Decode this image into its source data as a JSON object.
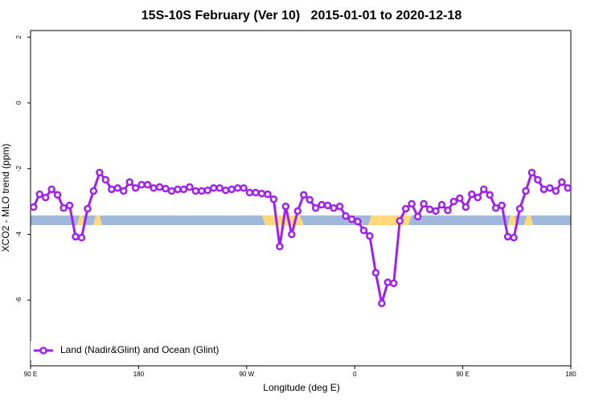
{
  "chart_data": {
    "type": "line",
    "title": "15S-10S February (Ver 10)   2015-01-01 to 2020-12-18",
    "xlabel": "Longitude (deg E)",
    "ylabel": "XCO2 - MLO trend (ppm)",
    "xlim": [
      90,
      540
    ],
    "xticks": [
      {
        "value": 90,
        "label": "90 E"
      },
      {
        "value": 180,
        "label": "180"
      },
      {
        "value": 270,
        "label": "90 W"
      },
      {
        "value": 360,
        "label": "0"
      },
      {
        "value": 450,
        "label": "90 E"
      },
      {
        "value": 540,
        "label": "180"
      }
    ],
    "ylim": [
      -8,
      2.2
    ],
    "yticks": [
      2,
      0,
      -2,
      -4,
      -6
    ],
    "legend": "bottom-left",
    "x": [
      92.5,
      97.5,
      102.5,
      107.5,
      112.5,
      117.5,
      122.5,
      127.5,
      132.5,
      137.5,
      142.5,
      147.5,
      152.5,
      157.5,
      162.5,
      167.5,
      172.5,
      177.5,
      182.5,
      187.5,
      192.5,
      197.5,
      202.5,
      207.5,
      212.5,
      217.5,
      222.5,
      227.5,
      232.5,
      237.5,
      242.5,
      247.5,
      252.5,
      257.5,
      262.5,
      267.5,
      272.5,
      277.5,
      282.5,
      287.5,
      292.5,
      297.5,
      302.5,
      307.5,
      312.5,
      317.5,
      322.5,
      327.5,
      332.5,
      337.5,
      342.5,
      347.5,
      352.5,
      357.5,
      362.5,
      367.5,
      372.5,
      377.5,
      382.5,
      387.5,
      392.5,
      397.5,
      402.5,
      407.5,
      412.5,
      417.5,
      422.5,
      427.5,
      432.5,
      437.5,
      442.5,
      447.5,
      452.5,
      457.5,
      462.5,
      467.5,
      472.5,
      477.5,
      482.5,
      487.5,
      492.5,
      497.5,
      502.5,
      507.5,
      512.5,
      517.5,
      522.5,
      527.5,
      532.5,
      537.5
    ],
    "series": [
      {
        "name": "Land (Nadir&Glint) and Ocean (Glint)",
        "color": "#a020f0",
        "values": [
          -3.17,
          -2.78,
          -2.88,
          -2.63,
          -2.8,
          -3.2,
          -3.12,
          -4.07,
          -4.1,
          -3.22,
          -2.68,
          -2.12,
          -2.34,
          -2.63,
          -2.59,
          -2.68,
          -2.41,
          -2.59,
          -2.49,
          -2.49,
          -2.59,
          -2.56,
          -2.61,
          -2.68,
          -2.63,
          -2.63,
          -2.56,
          -2.68,
          -2.68,
          -2.66,
          -2.59,
          -2.59,
          -2.66,
          -2.63,
          -2.59,
          -2.59,
          -2.73,
          -2.73,
          -2.76,
          -2.78,
          -2.93,
          -4.37,
          -3.15,
          -4.0,
          -3.29,
          -2.8,
          -2.95,
          -3.2,
          -3.1,
          -3.12,
          -3.2,
          -3.15,
          -3.44,
          -3.54,
          -3.61,
          -3.88,
          -4.05,
          -5.17,
          -6.1,
          -5.46,
          -5.49,
          -3.59,
          -3.22,
          -3.07,
          -3.46,
          -3.07,
          -3.24,
          -3.29,
          -3.1,
          -3.27,
          -3.0,
          -2.9,
          -3.17,
          -2.78,
          -2.88,
          -2.63,
          -2.8,
          -3.2,
          -3.12,
          -4.07,
          -4.1,
          -3.22,
          -2.68,
          -2.12,
          -2.34,
          -2.63,
          -2.59,
          -2.68,
          -2.41,
          -2.59
        ]
      }
    ]
  }
}
